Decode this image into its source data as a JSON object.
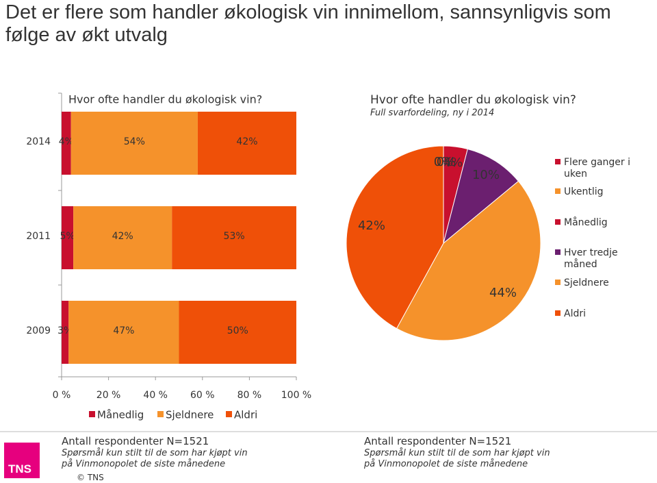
{
  "title": "Det er flere som handler økologisk vin innimellom, sannsynligvis som følge av økt utvalg",
  "chart_data": [
    {
      "type": "bar",
      "orientation": "horizontal",
      "stacked": true,
      "title": "Hvor ofte handler du økologisk vin?",
      "categories": [
        "2014",
        "2011",
        "2009"
      ],
      "series": [
        {
          "name": "Månedlig",
          "color": "#c8102e",
          "values": [
            4,
            5,
            3
          ],
          "value_labels": [
            "4%",
            "5%",
            "3%"
          ]
        },
        {
          "name": "Sjeldnere",
          "color": "#f5922b",
          "values": [
            54,
            42,
            47
          ],
          "value_labels": [
            "54%",
            "42%",
            "47%"
          ]
        },
        {
          "name": "Aldri",
          "color": "#ef5008",
          "values": [
            42,
            53,
            50
          ],
          "value_labels": [
            "42%",
            "53%",
            "50%"
          ]
        }
      ],
      "xlim": [
        0,
        100
      ],
      "xticks": [
        {
          "value": 0,
          "label": "0 %"
        },
        {
          "value": 20,
          "label": "20 %"
        },
        {
          "value": 40,
          "label": "40 %"
        },
        {
          "value": 60,
          "label": "60 %"
        },
        {
          "value": 80,
          "label": "80 %"
        },
        {
          "value": 100,
          "label": "100 %"
        }
      ],
      "legend": "bottom"
    },
    {
      "type": "pie",
      "title": "Hvor ofte handler du økologisk vin?",
      "subtitle": "Full svarfordeling, ny i 2014",
      "categories": [
        "Flere ganger i uken",
        "Ukentlig",
        "Månedlig",
        "Hver tredje måned",
        "Sjeldnere",
        "Aldri"
      ],
      "values": [
        0,
        0,
        4,
        10,
        44,
        42
      ],
      "value_labels": [
        "0%",
        "0%",
        "4%",
        "10%",
        "44%",
        "42%"
      ],
      "colors": [
        "#c8102e",
        "#f5922b",
        "#c8102e",
        "#6b1f6f",
        "#f5922b",
        "#ef5008"
      ],
      "legend": "right"
    }
  ],
  "footer": [
    {
      "n": "Antall respondenter N=1521",
      "note": "Spørsmål kun stilt til de som har kjøpt vin på Vinmonopolet de siste månedene"
    },
    {
      "n": "Antall respondenter N=1521",
      "note": "Spørsmål kun stilt til de som har kjøpt vin på Vinmonopolet de siste månedene"
    }
  ],
  "copyright": "© TNS",
  "logo": "TNS"
}
